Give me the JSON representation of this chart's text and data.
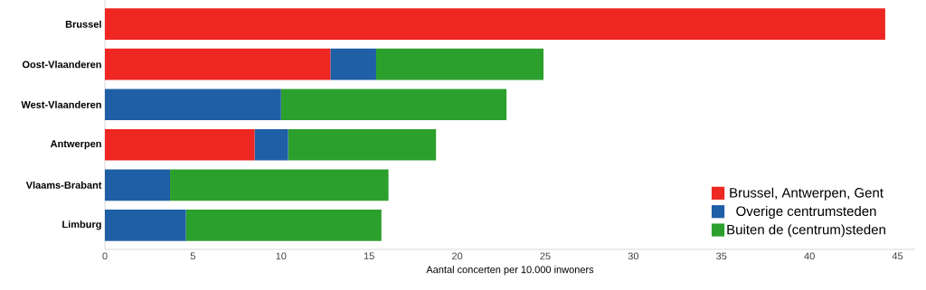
{
  "chart_data": {
    "type": "bar",
    "orientation": "horizontal",
    "stacked": true,
    "categories": [
      "Brussel",
      "Oost-Vlaanderen",
      "West-Vlaanderen",
      "Antwerpen",
      "Vlaams-Brabant",
      "Limburg"
    ],
    "series": [
      {
        "name": "Brussel, Antwerpen, Gent",
        "color": "#ee2722",
        "values": [
          44.3,
          12.8,
          0,
          8.5,
          0,
          0
        ]
      },
      {
        "name": "Overige centrumsteden",
        "color": "#1f5fa6",
        "values": [
          0,
          2.6,
          10.0,
          1.9,
          3.7,
          4.6
        ]
      },
      {
        "name": "Buiten de (centrum)steden",
        "color": "#2ca02c",
        "values": [
          0,
          9.5,
          12.8,
          8.4,
          12.4,
          11.1
        ]
      }
    ],
    "xlabel": "Aantal concerten per 10.000 inwoners",
    "xlim": [
      0,
      46
    ],
    "xticks": [
      0,
      5,
      10,
      15,
      20,
      25,
      30,
      35,
      40,
      45
    ],
    "legend": "bottom right",
    "grid": false
  }
}
